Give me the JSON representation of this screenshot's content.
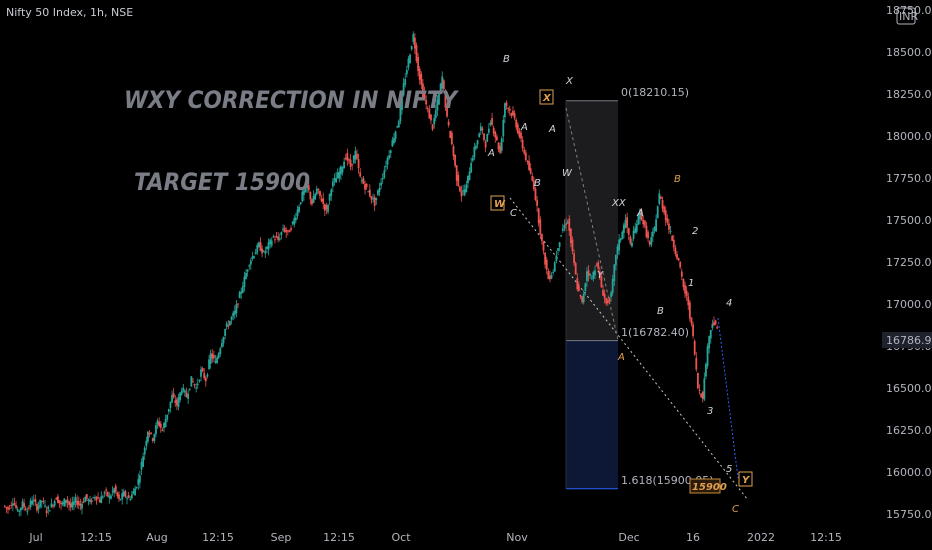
{
  "header": {
    "symbol_line": "Nifty 50 Index, 1h, NSE"
  },
  "currency": "INR",
  "annotations": {
    "title": "WXY CORRECTION IN NIFTY",
    "target": "TARGET 15900",
    "last_price": "16786.90",
    "target_box": "15900"
  },
  "fib": {
    "level_0": "0(18210.15)",
    "level_1": "1(16782.40)",
    "level_1618": "1.618(15900.05)"
  },
  "chart_data": {
    "type": "line",
    "title": "WXY CORRECTION IN NIFTY",
    "xlabel": "",
    "ylabel": "",
    "x_tick_labels": [
      "Jul",
      "12:15",
      "Aug",
      "12:15",
      "Sep",
      "12:15",
      "Oct",
      "Nov",
      "Dec",
      "16",
      "2022",
      "12:15"
    ],
    "y_ticks": [
      15750,
      16000,
      16250,
      16500,
      16750,
      17000,
      17250,
      17500,
      17750,
      18000,
      18250,
      18500,
      18750
    ],
    "y_tick_labels": [
      "15750.00",
      "16000.00",
      "16250.00",
      "16500.00",
      "16750.00",
      "17000.00",
      "17250.00",
      "17500.00",
      "17750.00",
      "18000.00",
      "18250.00",
      "18500.00",
      "18750.00"
    ],
    "ylim": [
      15720,
      18780
    ],
    "grid": false,
    "series": [
      {
        "values": [
          15800,
          15780,
          15830,
          15760,
          15810,
          15770,
          15840,
          15790,
          15830,
          15770,
          15800,
          15850,
          15800,
          15840,
          15790,
          15830,
          15800,
          15850,
          15820,
          15860,
          15830,
          15880,
          15850,
          15900,
          15830,
          15870,
          15840,
          15880,
          15950,
          16100,
          16250,
          16200,
          16300,
          16250,
          16350,
          16450,
          16400,
          16500,
          16450,
          16550,
          16500,
          16600,
          16550,
          16700,
          16650,
          16750,
          16850,
          16900,
          16950,
          17050,
          17150,
          17250,
          17300,
          17350,
          17300,
          17350,
          17400,
          17380,
          17450,
          17420,
          17480,
          17560,
          17650,
          17700,
          17600,
          17680,
          17620,
          17550,
          17700,
          17750,
          17800,
          17880,
          17820,
          17900,
          17750,
          17700,
          17650,
          17600,
          17700,
          17800,
          17900,
          18000,
          18100,
          18300,
          18450,
          18600,
          18400,
          18250,
          18150,
          18050,
          18200,
          18350,
          18100,
          17950,
          17750,
          17650,
          17700,
          17850,
          17950,
          18050,
          17950,
          18100,
          18000,
          17900,
          18200,
          18150,
          18100,
          18000,
          17900,
          17800,
          17700,
          17500,
          17300,
          17150,
          17200,
          17350,
          17450,
          17500,
          17300,
          17100,
          17000,
          17200,
          17150,
          17250,
          17100,
          17000,
          17050,
          17300,
          17400,
          17500,
          17350,
          17450,
          17550,
          17450,
          17350,
          17450,
          17650,
          17550,
          17450,
          17350,
          17250,
          17100,
          17000,
          16800,
          16500,
          16450,
          16750,
          16900,
          16850
        ]
      }
    ]
  }
}
